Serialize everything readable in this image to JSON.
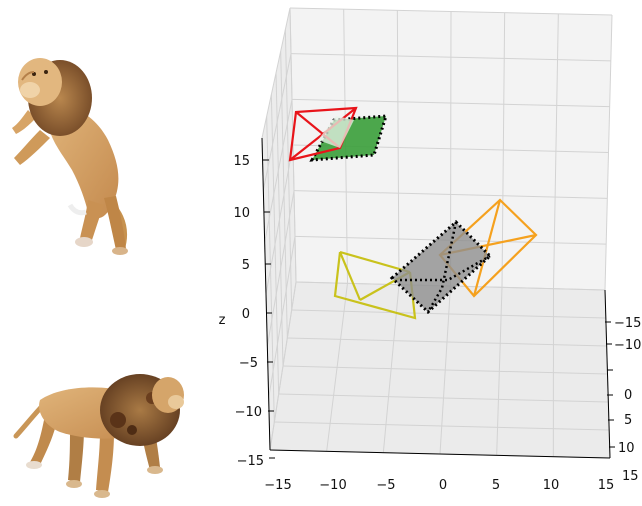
{
  "axes": {
    "z_label": "z",
    "z_ticks": [
      "15",
      "10",
      "5",
      "0",
      "−5",
      "−10",
      "−15"
    ],
    "x_ticks": [
      "−15",
      "−10",
      "−5",
      "0",
      "5",
      "10",
      "15"
    ],
    "y_ticks": [
      "−15",
      "−10",
      "0",
      "5",
      "10",
      "15"
    ],
    "grid": true
  },
  "images": [
    {
      "name": "lion-standing-image",
      "subject": "lion rearing up"
    },
    {
      "name": "lion-walking-image",
      "subject": "lion walking"
    }
  ],
  "cameras": [
    {
      "name": "camera-red",
      "color": "#e8141a"
    },
    {
      "name": "camera-orange",
      "color": "#f5a11e"
    },
    {
      "name": "camera-yellow",
      "color": "#c9c21c"
    }
  ],
  "planes": [
    {
      "name": "green-image-plane",
      "color": "#3a9e3a"
    },
    {
      "name": "gray-image-plane",
      "color": "#8f8f8f"
    }
  ],
  "colors": {
    "grid": "#d6d6d6",
    "pane": "#f2f2f2",
    "axis": "#000000"
  }
}
